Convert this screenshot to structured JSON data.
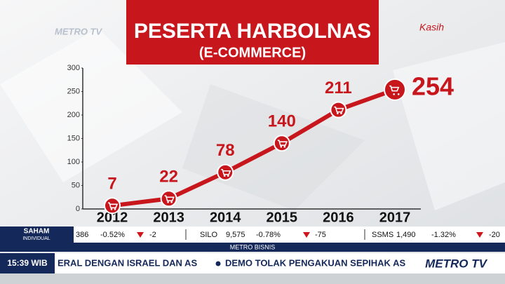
{
  "chart_data": {
    "type": "line",
    "title": "PESERTA HARBOLNAS",
    "subtitle": "(E-COMMERCE)",
    "categories": [
      "2012",
      "2013",
      "2014",
      "2015",
      "2016",
      "2017"
    ],
    "values": [
      7,
      22,
      78,
      140,
      211,
      254
    ],
    "color": "#c8161d",
    "ylim": [
      0,
      300
    ],
    "yticks": [
      0,
      50,
      100,
      150,
      200,
      250,
      300
    ]
  },
  "logos": {
    "channel_top": "METRO TV",
    "program": "Kasih",
    "channel_bottom": "METRO TV"
  },
  "ticker": {
    "label_top": "SAHAM",
    "label_bottom": "INDIVIDUAL",
    "items": [
      "386",
      "-0.52%",
      "-2",
      "SILO",
      "9,575",
      "-0.78%",
      "-75",
      "SSMS",
      "1,490",
      "-1.32%",
      "-20"
    ],
    "section": "METRO BISNIS",
    "time": "15:39 WIB",
    "news": [
      "ERAL DENGAN ISRAEL DAN AS",
      "DEMO TOLAK PENGAKUAN SEPIHAK AS S"
    ]
  }
}
